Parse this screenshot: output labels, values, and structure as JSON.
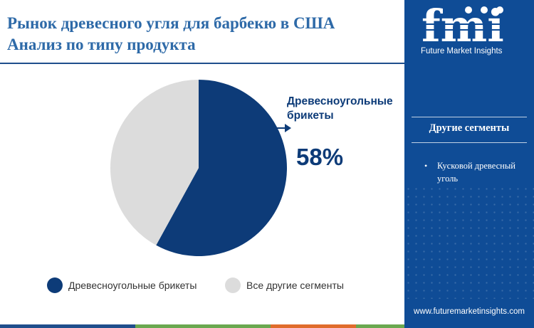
{
  "header": {
    "title_line1": "Рынок древесного угля для барбекю в США",
    "title_line2": "Анализ по типу продукта"
  },
  "chart_data": {
    "type": "pie",
    "categories": [
      "Древесноугольные брикеты",
      "Все другие сегменты"
    ],
    "values": [
      58,
      42
    ],
    "colors": [
      "#0d3b78",
      "#dcdcdc"
    ],
    "callout": {
      "label_line1": "Древесноугольные",
      "label_line2": "брикеты",
      "value": "58%"
    },
    "legend_position": "bottom"
  },
  "legend": {
    "items": [
      {
        "label": "Древесноугольные брикеты",
        "color": "#0d3b78"
      },
      {
        "label": "Все другие сегменты",
        "color": "#dcdcdc"
      }
    ]
  },
  "sidebar": {
    "logo_letters": "fmi",
    "logo_text": "Future Market Insights",
    "heading": "Другие сегменты",
    "segments": [
      "Кусковой древесный уголь"
    ],
    "website": "www.futuremarketinsights.com"
  },
  "colors": {
    "accent": "#0d3b78",
    "sidebar": "#0f4c96",
    "title": "#2e6aa8",
    "other": "#dcdcdc",
    "bar": [
      "#1f4e8c",
      "#6aa84f",
      "#e06c2c",
      "#6aa84f"
    ]
  }
}
